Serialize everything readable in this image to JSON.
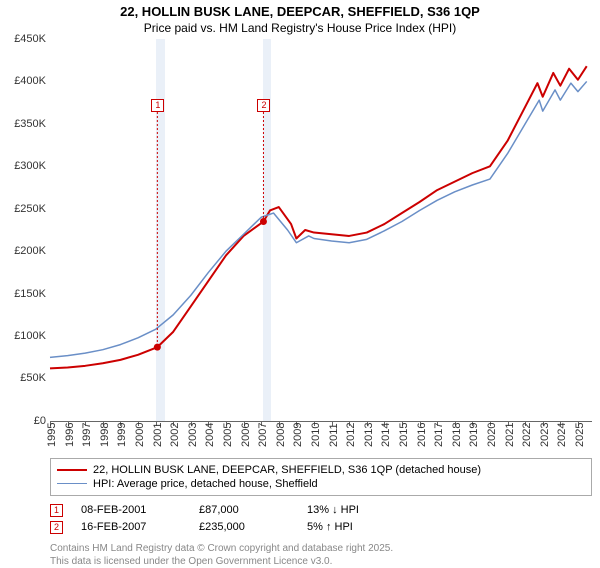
{
  "title": "22, HOLLIN BUSK LANE, DEEPCAR, SHEFFIELD, S36 1QP",
  "subtitle": "Price paid vs. HM Land Registry's House Price Index (HPI)",
  "chart": {
    "type": "line",
    "x_start": 1995,
    "x_end": 2025.8,
    "ylim": [
      0,
      450000
    ],
    "ytick_step": 50000,
    "ytick_labels": [
      "£0",
      "£50K",
      "£100K",
      "£150K",
      "£200K",
      "£250K",
      "£300K",
      "£350K",
      "£400K",
      "£450K"
    ],
    "xticks": [
      1995,
      1996,
      1997,
      1998,
      1999,
      2000,
      2001,
      2002,
      2003,
      2004,
      2005,
      2006,
      2007,
      2008,
      2009,
      2010,
      2011,
      2012,
      2013,
      2014,
      2015,
      2016,
      2017,
      2018,
      2019,
      2020,
      2021,
      2022,
      2023,
      2024,
      2025
    ],
    "background_color": "#ffffff",
    "grid": false,
    "series": [
      {
        "name": "22, HOLLIN BUSK LANE, DEEPCAR, SHEFFIELD, S36 1QP (detached house)",
        "color": "#cc0000",
        "width": 2,
        "data": [
          [
            1995,
            62000
          ],
          [
            1996,
            63000
          ],
          [
            1997,
            65000
          ],
          [
            1998,
            68000
          ],
          [
            1999,
            72000
          ],
          [
            2000,
            78000
          ],
          [
            2001.1,
            87000
          ],
          [
            2002,
            105000
          ],
          [
            2003,
            135000
          ],
          [
            2004,
            165000
          ],
          [
            2005,
            195000
          ],
          [
            2006,
            218000
          ],
          [
            2007.13,
            235000
          ],
          [
            2007.5,
            248000
          ],
          [
            2008,
            252000
          ],
          [
            2008.7,
            232000
          ],
          [
            2009,
            215000
          ],
          [
            2009.5,
            225000
          ],
          [
            2010,
            222000
          ],
          [
            2011,
            220000
          ],
          [
            2012,
            218000
          ],
          [
            2013,
            222000
          ],
          [
            2014,
            232000
          ],
          [
            2015,
            245000
          ],
          [
            2016,
            258000
          ],
          [
            2017,
            272000
          ],
          [
            2018,
            282000
          ],
          [
            2019,
            292000
          ],
          [
            2020,
            300000
          ],
          [
            2021,
            330000
          ],
          [
            2022,
            370000
          ],
          [
            2022.7,
            398000
          ],
          [
            2023,
            382000
          ],
          [
            2023.6,
            410000
          ],
          [
            2024,
            395000
          ],
          [
            2024.5,
            415000
          ],
          [
            2025,
            402000
          ],
          [
            2025.5,
            418000
          ]
        ]
      },
      {
        "name": "HPI: Average price, detached house, Sheffield",
        "color": "#6a8fc7",
        "width": 1.5,
        "data": [
          [
            1995,
            75000
          ],
          [
            1996,
            77000
          ],
          [
            1997,
            80000
          ],
          [
            1998,
            84000
          ],
          [
            1999,
            90000
          ],
          [
            2000,
            98000
          ],
          [
            2001,
            108000
          ],
          [
            2002,
            125000
          ],
          [
            2003,
            148000
          ],
          [
            2004,
            175000
          ],
          [
            2005,
            200000
          ],
          [
            2006,
            220000
          ],
          [
            2007,
            240000
          ],
          [
            2007.7,
            245000
          ],
          [
            2008.5,
            225000
          ],
          [
            2009,
            210000
          ],
          [
            2009.7,
            218000
          ],
          [
            2010,
            215000
          ],
          [
            2011,
            212000
          ],
          [
            2012,
            210000
          ],
          [
            2013,
            214000
          ],
          [
            2014,
            224000
          ],
          [
            2015,
            235000
          ],
          [
            2016,
            248000
          ],
          [
            2017,
            260000
          ],
          [
            2018,
            270000
          ],
          [
            2019,
            278000
          ],
          [
            2020,
            285000
          ],
          [
            2021,
            315000
          ],
          [
            2022,
            350000
          ],
          [
            2022.8,
            378000
          ],
          [
            2023,
            365000
          ],
          [
            2023.7,
            390000
          ],
          [
            2024,
            378000
          ],
          [
            2024.6,
            398000
          ],
          [
            2025,
            388000
          ],
          [
            2025.5,
            400000
          ]
        ]
      }
    ],
    "event_bands": [
      {
        "from": 2001.05,
        "to": 2001.55,
        "color": "#eaf0f8"
      },
      {
        "from": 2007.08,
        "to": 2007.58,
        "color": "#eaf0f8"
      }
    ],
    "event_markers": [
      {
        "num": "1",
        "x": 2001.1,
        "y_top": 60,
        "point_x": 2001.1,
        "point_y": 87000
      },
      {
        "num": "2",
        "x": 2007.13,
        "y_top": 60,
        "point_x": 2007.13,
        "point_y": 235000
      }
    ]
  },
  "legend": {
    "items": [
      {
        "color": "#cc0000",
        "label": "22, HOLLIN BUSK LANE, DEEPCAR, SHEFFIELD, S36 1QP (detached house)",
        "width": 2
      },
      {
        "color": "#6a8fc7",
        "label": "HPI: Average price, detached house, Sheffield",
        "width": 1.5
      }
    ]
  },
  "events": [
    {
      "num": "1",
      "date": "08-FEB-2001",
      "price": "£87,000",
      "delta": "13% ↓ HPI"
    },
    {
      "num": "2",
      "date": "16-FEB-2007",
      "price": "£235,000",
      "delta": "5% ↑ HPI"
    }
  ],
  "credits": {
    "line1": "Contains HM Land Registry data © Crown copyright and database right 2025.",
    "line2": "This data is licensed under the Open Government Licence v3.0."
  }
}
